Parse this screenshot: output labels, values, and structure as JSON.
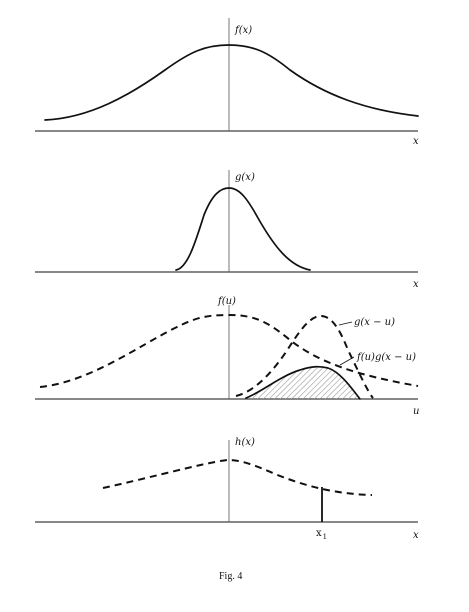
{
  "panels": {
    "f": {
      "curve_label": "f(x)",
      "axis_label": "x"
    },
    "g": {
      "curve_label": "g(x)",
      "axis_label": "x"
    },
    "conv": {
      "curve_label": "f(u)",
      "shifted_label": "g(x − u)",
      "product_label": "f(u)g(x − u)",
      "axis_label": "u"
    },
    "h": {
      "curve_label": "h(x)",
      "axis_label": "x",
      "marker_label": "x",
      "marker_subscript": "1"
    }
  },
  "caption": "Fig. 4",
  "colors": {
    "ink": "#111111",
    "hatch": "#9a9a9a",
    "background": "#ffffff"
  }
}
